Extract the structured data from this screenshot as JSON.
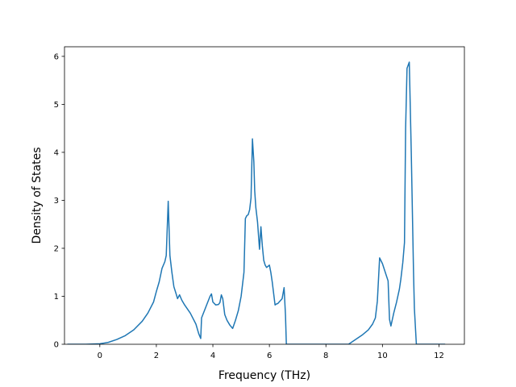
{
  "chart_data": {
    "type": "line",
    "title": "",
    "xlabel": "Frequency (THz)",
    "ylabel": "Density of States",
    "xlim": [
      -1.25,
      12.9
    ],
    "ylim": [
      0,
      6.2
    ],
    "xticks": [
      0,
      2,
      4,
      6,
      8,
      10,
      12
    ],
    "yticks": [
      0,
      1,
      2,
      3,
      4,
      5,
      6
    ],
    "xtick_labels": [
      "0",
      "2",
      "4",
      "6",
      "8",
      "10",
      "12"
    ],
    "ytick_labels": [
      "0",
      "1",
      "2",
      "3",
      "4",
      "5",
      "6"
    ],
    "grid": false,
    "legend": "none",
    "series": [
      {
        "color": "#1f77b4",
        "x": [
          -1.15,
          -0.5,
          0.0,
          0.3,
          0.6,
          0.9,
          1.2,
          1.5,
          1.7,
          1.9,
          2.0,
          2.1,
          2.2,
          2.3,
          2.35,
          2.42,
          2.48,
          2.55,
          2.62,
          2.7,
          2.75,
          2.82,
          2.9,
          3.0,
          3.2,
          3.4,
          3.5,
          3.57,
          3.6,
          3.7,
          3.8,
          3.9,
          3.95,
          4.0,
          4.1,
          4.2,
          4.25,
          4.3,
          4.35,
          4.42,
          4.5,
          4.6,
          4.7,
          4.8,
          4.9,
          5.0,
          5.1,
          5.15,
          5.2,
          5.25,
          5.3,
          5.35,
          5.4,
          5.45,
          5.48,
          5.52,
          5.58,
          5.65,
          5.7,
          5.75,
          5.8,
          5.85,
          5.9,
          6.0,
          6.05,
          6.1,
          6.2,
          6.25,
          6.3,
          6.45,
          6.52,
          6.57,
          6.6,
          6.62,
          6.65,
          7.0,
          8.0,
          8.8,
          8.9,
          9.1,
          9.3,
          9.5,
          9.65,
          9.75,
          9.82,
          9.9,
          10.0,
          10.1,
          10.2,
          10.25,
          10.3,
          10.4,
          10.5,
          10.6,
          10.65,
          10.72,
          10.78,
          10.82,
          10.87,
          10.95,
          11.02,
          11.1,
          11.13,
          11.2,
          11.5,
          12.0,
          12.22
        ],
        "y": [
          0,
          0,
          0.01,
          0.04,
          0.1,
          0.18,
          0.3,
          0.48,
          0.65,
          0.88,
          1.1,
          1.3,
          1.58,
          1.72,
          1.85,
          2.98,
          1.85,
          1.5,
          1.2,
          1.05,
          0.95,
          1.03,
          0.92,
          0.82,
          0.65,
          0.42,
          0.22,
          0.12,
          0.55,
          0.7,
          0.85,
          1.0,
          1.05,
          0.88,
          0.82,
          0.83,
          0.87,
          1.03,
          0.95,
          0.62,
          0.5,
          0.4,
          0.33,
          0.5,
          0.7,
          1.0,
          1.5,
          2.62,
          2.68,
          2.7,
          2.8,
          3.05,
          4.28,
          3.8,
          3.2,
          2.85,
          2.55,
          1.98,
          2.45,
          2.05,
          1.75,
          1.65,
          1.6,
          1.65,
          1.5,
          1.3,
          0.82,
          0.84,
          0.85,
          0.95,
          1.18,
          0.6,
          0.0,
          0.0,
          0.0,
          0,
          0,
          0,
          0.04,
          0.12,
          0.2,
          0.3,
          0.42,
          0.55,
          0.9,
          1.8,
          1.68,
          1.5,
          1.32,
          0.52,
          0.38,
          0.65,
          0.88,
          1.15,
          1.35,
          1.7,
          2.12,
          4.5,
          5.75,
          5.88,
          4.0,
          1.5,
          0.75,
          0.0,
          0,
          0,
          0
        ]
      }
    ]
  }
}
